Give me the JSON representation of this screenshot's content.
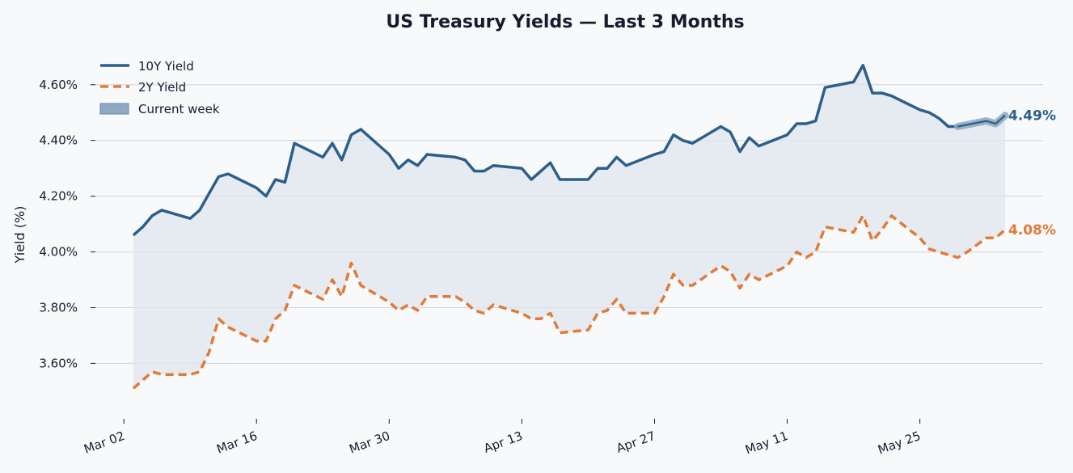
{
  "chart_data": {
    "type": "line",
    "title": "US Treasury Yields — Last 3 Months",
    "xlabel": "",
    "ylabel": "Yield (%)",
    "x_tick_labels": [
      "Mar 02",
      "Mar 16",
      "Mar 30",
      "Apr 13",
      "Apr 27",
      "May 11",
      "May 25"
    ],
    "x_tick_dates": [
      "2025-03-02",
      "2025-03-16",
      "2025-03-30",
      "2025-04-13",
      "2025-04-27",
      "2025-05-11",
      "2025-05-25"
    ],
    "y_tick_labels": [
      "3.60%",
      "3.80%",
      "4.00%",
      "4.20%",
      "4.40%",
      "4.60%"
    ],
    "y_ticks": [
      3.6,
      3.8,
      4.0,
      4.2,
      4.4,
      4.6
    ],
    "ylim": [
      3.43,
      4.73
    ],
    "xlim": [
      "2025-02-27",
      "2025-06-07"
    ],
    "grid": "horizontal",
    "legend_placement": "top-left",
    "legend": [
      "10Y Yield",
      "2Y Yield",
      "Current week"
    ],
    "colors": {
      "ten_year": "#2c5f8a",
      "two_year": "#e07b39",
      "fill": "#dfe6ee",
      "band": "#8fa9c2",
      "grid": "#d0d4da",
      "background": "#f7f9fb"
    },
    "end_labels": {
      "ten_year": "4.49%",
      "two_year": "4.08%"
    },
    "highlight": {
      "label": "Current week",
      "start": "2025-05-30",
      "end": "2025-06-05"
    },
    "series": [
      {
        "name": "10Y Yield",
        "style": "solid",
        "points": [
          [
            "2025-03-03",
            4.06
          ],
          [
            "2025-03-04",
            4.09
          ],
          [
            "2025-03-05",
            4.13
          ],
          [
            "2025-03-06",
            4.15
          ],
          [
            "2025-03-09",
            4.12
          ],
          [
            "2025-03-10",
            4.15
          ],
          [
            "2025-03-11",
            4.21
          ],
          [
            "2025-03-12",
            4.27
          ],
          [
            "2025-03-13",
            4.28
          ],
          [
            "2025-03-16",
            4.23
          ],
          [
            "2025-03-17",
            4.2
          ],
          [
            "2025-03-18",
            4.26
          ],
          [
            "2025-03-19",
            4.25
          ],
          [
            "2025-03-20",
            4.39
          ],
          [
            "2025-03-23",
            4.34
          ],
          [
            "2025-03-24",
            4.39
          ],
          [
            "2025-03-25",
            4.33
          ],
          [
            "2025-03-26",
            4.42
          ],
          [
            "2025-03-27",
            4.44
          ],
          [
            "2025-03-30",
            4.35
          ],
          [
            "2025-03-31",
            4.3
          ],
          [
            "2025-04-01",
            4.33
          ],
          [
            "2025-04-02",
            4.31
          ],
          [
            "2025-04-03",
            4.35
          ],
          [
            "2025-04-06",
            4.34
          ],
          [
            "2025-04-07",
            4.33
          ],
          [
            "2025-04-08",
            4.29
          ],
          [
            "2025-04-09",
            4.29
          ],
          [
            "2025-04-10",
            4.31
          ],
          [
            "2025-04-13",
            4.3
          ],
          [
            "2025-04-14",
            4.26
          ],
          [
            "2025-04-16",
            4.32
          ],
          [
            "2025-04-17",
            4.26
          ],
          [
            "2025-04-20",
            4.26
          ],
          [
            "2025-04-21",
            4.3
          ],
          [
            "2025-04-22",
            4.3
          ],
          [
            "2025-04-23",
            4.34
          ],
          [
            "2025-04-24",
            4.31
          ],
          [
            "2025-04-27",
            4.35
          ],
          [
            "2025-04-28",
            4.36
          ],
          [
            "2025-04-29",
            4.42
          ],
          [
            "2025-04-30",
            4.4
          ],
          [
            "2025-05-01",
            4.39
          ],
          [
            "2025-05-04",
            4.45
          ],
          [
            "2025-05-05",
            4.43
          ],
          [
            "2025-05-06",
            4.36
          ],
          [
            "2025-05-07",
            4.41
          ],
          [
            "2025-05-08",
            4.38
          ],
          [
            "2025-05-11",
            4.42
          ],
          [
            "2025-05-12",
            4.46
          ],
          [
            "2025-05-13",
            4.46
          ],
          [
            "2025-05-14",
            4.47
          ],
          [
            "2025-05-15",
            4.59
          ],
          [
            "2025-05-18",
            4.61
          ],
          [
            "2025-05-19",
            4.67
          ],
          [
            "2025-05-20",
            4.57
          ],
          [
            "2025-05-21",
            4.57
          ],
          [
            "2025-05-22",
            4.56
          ],
          [
            "2025-05-25",
            4.51
          ],
          [
            "2025-05-26",
            4.5
          ],
          [
            "2025-05-27",
            4.48
          ],
          [
            "2025-05-28",
            4.45
          ],
          [
            "2025-05-29",
            4.45
          ],
          [
            "2025-06-01",
            4.47
          ],
          [
            "2025-06-02",
            4.46
          ],
          [
            "2025-06-03",
            4.49
          ]
        ]
      },
      {
        "name": "2Y Yield",
        "style": "dashed",
        "points": [
          [
            "2025-03-03",
            3.51
          ],
          [
            "2025-03-05",
            3.57
          ],
          [
            "2025-03-06",
            3.56
          ],
          [
            "2025-03-09",
            3.56
          ],
          [
            "2025-03-10",
            3.57
          ],
          [
            "2025-03-11",
            3.64
          ],
          [
            "2025-03-12",
            3.76
          ],
          [
            "2025-03-13",
            3.73
          ],
          [
            "2025-03-16",
            3.68
          ],
          [
            "2025-03-17",
            3.68
          ],
          [
            "2025-03-18",
            3.76
          ],
          [
            "2025-03-19",
            3.79
          ],
          [
            "2025-03-20",
            3.88
          ],
          [
            "2025-03-23",
            3.83
          ],
          [
            "2025-03-24",
            3.9
          ],
          [
            "2025-03-25",
            3.84
          ],
          [
            "2025-03-26",
            3.96
          ],
          [
            "2025-03-27",
            3.88
          ],
          [
            "2025-03-30",
            3.82
          ],
          [
            "2025-03-31",
            3.79
          ],
          [
            "2025-04-01",
            3.81
          ],
          [
            "2025-04-02",
            3.79
          ],
          [
            "2025-04-03",
            3.84
          ],
          [
            "2025-04-06",
            3.84
          ],
          [
            "2025-04-07",
            3.82
          ],
          [
            "2025-04-08",
            3.79
          ],
          [
            "2025-04-09",
            3.78
          ],
          [
            "2025-04-10",
            3.81
          ],
          [
            "2025-04-13",
            3.78
          ],
          [
            "2025-04-14",
            3.76
          ],
          [
            "2025-04-15",
            3.76
          ],
          [
            "2025-04-16",
            3.78
          ],
          [
            "2025-04-17",
            3.71
          ],
          [
            "2025-04-20",
            3.72
          ],
          [
            "2025-04-21",
            3.78
          ],
          [
            "2025-04-22",
            3.79
          ],
          [
            "2025-04-23",
            3.83
          ],
          [
            "2025-04-24",
            3.78
          ],
          [
            "2025-04-27",
            3.78
          ],
          [
            "2025-04-28",
            3.84
          ],
          [
            "2025-04-29",
            3.92
          ],
          [
            "2025-04-30",
            3.88
          ],
          [
            "2025-05-01",
            3.88
          ],
          [
            "2025-05-04",
            3.95
          ],
          [
            "2025-05-05",
            3.93
          ],
          [
            "2025-05-06",
            3.87
          ],
          [
            "2025-05-07",
            3.92
          ],
          [
            "2025-05-08",
            3.9
          ],
          [
            "2025-05-11",
            3.95
          ],
          [
            "2025-05-12",
            4.0
          ],
          [
            "2025-05-13",
            3.98
          ],
          [
            "2025-05-14",
            4.0
          ],
          [
            "2025-05-15",
            4.09
          ],
          [
            "2025-05-18",
            4.07
          ],
          [
            "2025-05-19",
            4.13
          ],
          [
            "2025-05-20",
            4.04
          ],
          [
            "2025-05-21",
            4.08
          ],
          [
            "2025-05-22",
            4.13
          ],
          [
            "2025-05-25",
            4.05
          ],
          [
            "2025-05-26",
            4.01
          ],
          [
            "2025-05-29",
            3.98
          ],
          [
            "2025-05-30",
            4.0
          ],
          [
            "2025-06-01",
            4.05
          ],
          [
            "2025-06-02",
            4.05
          ],
          [
            "2025-06-03",
            4.08
          ]
        ]
      }
    ]
  }
}
